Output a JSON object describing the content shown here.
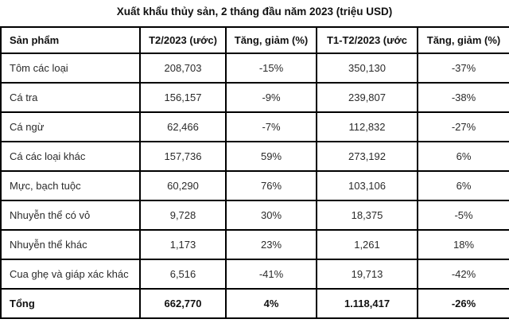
{
  "title": "Xuất khẩu thủy sản, 2 tháng đầu năm 2023 (triệu USD)",
  "chart_data": {
    "type": "table",
    "title": "Xuất khẩu thủy sản, 2 tháng đầu năm 2023 (triệu USD)",
    "columns": [
      "Sản phẩm",
      "T2/2023 (ước)",
      "Tăng, giảm (%)",
      "T1-T2/2023 (ước",
      "Tăng, giảm (%)"
    ],
    "rows": [
      [
        "Tôm các loại",
        "208,703",
        "-15%",
        "350,130",
        "-37%"
      ],
      [
        "Cá tra",
        "156,157",
        "-9%",
        "239,807",
        "-38%"
      ],
      [
        "Cá ngừ",
        "62,466",
        "-7%",
        "112,832",
        "-27%"
      ],
      [
        "Cá các loại khác",
        "157,736",
        "59%",
        "273,192",
        "6%"
      ],
      [
        "Mực, bạch tuộc",
        "60,290",
        "76%",
        "103,106",
        "6%"
      ],
      [
        "Nhuyễn thể có vỏ",
        "9,728",
        "30%",
        "18,375",
        "-5%"
      ],
      [
        "Nhuyễn thể khác",
        "1,173",
        "23%",
        "1,261",
        "18%"
      ],
      [
        "Cua ghẹ và giáp xác khác",
        "6,516",
        "-41%",
        "19,713",
        "-42%"
      ]
    ],
    "total_row": [
      "Tổng",
      "662,770",
      "4%",
      "1.118,417",
      "-26%"
    ],
    "layout": {
      "border_color": "#000000",
      "background": "#ffffff",
      "grid": "on"
    }
  }
}
